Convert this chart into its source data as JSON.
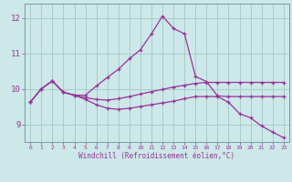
{
  "xlabel": "Windchill (Refroidissement éolien,°C)",
  "background_color": "#cce8e8",
  "grid_color": "#aacccc",
  "line_color": "#993399",
  "spine_color": "#7799aa",
  "x": [
    0,
    1,
    2,
    3,
    4,
    5,
    6,
    7,
    8,
    9,
    10,
    11,
    12,
    13,
    14,
    15,
    16,
    17,
    18,
    19,
    20,
    21,
    22,
    23
  ],
  "line1": [
    9.62,
    10.0,
    10.22,
    9.9,
    9.82,
    9.82,
    10.08,
    10.32,
    10.55,
    10.85,
    11.1,
    11.55,
    12.05,
    11.7,
    11.55,
    10.35,
    10.2,
    9.8,
    9.78,
    9.78,
    9.78,
    9.78,
    9.78,
    9.78
  ],
  "line2": [
    9.62,
    10.0,
    10.22,
    9.9,
    9.82,
    9.75,
    9.7,
    9.68,
    9.72,
    9.78,
    9.85,
    9.92,
    9.98,
    10.05,
    10.1,
    10.15,
    10.18,
    10.18,
    10.18,
    10.18,
    10.18,
    10.18,
    10.18,
    10.18
  ],
  "line3": [
    9.62,
    10.0,
    10.22,
    9.9,
    9.82,
    9.7,
    9.55,
    9.45,
    9.42,
    9.45,
    9.5,
    9.55,
    9.6,
    9.65,
    9.72,
    9.78,
    9.78,
    9.78,
    9.62,
    9.3,
    9.18,
    8.95,
    8.78,
    8.62
  ],
  "ylim": [
    8.5,
    12.4
  ],
  "yticks": [
    9,
    10,
    11,
    12
  ],
  "xticks": [
    0,
    1,
    2,
    3,
    4,
    5,
    6,
    7,
    8,
    9,
    10,
    11,
    12,
    13,
    14,
    15,
    16,
    17,
    18,
    19,
    20,
    21,
    22,
    23
  ]
}
